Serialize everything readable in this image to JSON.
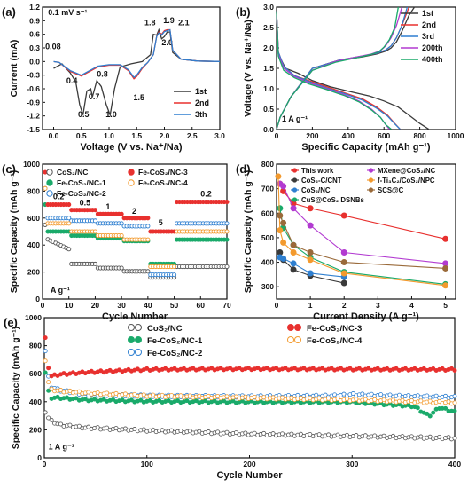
{
  "chart_data": [
    {
      "panel_label": "(a)",
      "type": "line",
      "xlabel": "Voltage (V vs. Na⁺/Na)",
      "ylabel": "Current (mA)",
      "xlim": [
        -0.2,
        3.0
      ],
      "ylim": [
        -1.5,
        1.2
      ],
      "xticks": [
        0.0,
        0.5,
        1.0,
        1.5,
        2.0,
        2.5,
        3.0
      ],
      "yticks": [
        -1.5,
        -1.2,
        -0.9,
        -0.6,
        -0.3,
        0.0,
        0.3,
        0.6,
        0.9,
        1.2
      ],
      "annotations": [
        {
          "text": "0.1 mV s⁻¹",
          "x": -0.1,
          "y": 1.02
        },
        {
          "text": "0.08",
          "x": -0.15,
          "y": 0.27
        },
        {
          "text": "0.4",
          "x": 0.23,
          "y": -0.48
        },
        {
          "text": "0.5",
          "x": 0.44,
          "y": -1.23
        },
        {
          "text": "0.7",
          "x": 0.63,
          "y": -0.83
        },
        {
          "text": "0.8",
          "x": 0.78,
          "y": -0.34
        },
        {
          "text": "1.0",
          "x": 0.94,
          "y": -1.23
        },
        {
          "text": "1.5",
          "x": 1.44,
          "y": -0.85
        },
        {
          "text": "1.8",
          "x": 1.64,
          "y": 0.8
        },
        {
          "text": "1.9",
          "x": 1.98,
          "y": 0.85
        },
        {
          "text": "2.1",
          "x": 2.25,
          "y": 0.8
        },
        {
          "text": "2.0",
          "x": 1.95,
          "y": 0.36
        }
      ],
      "series": [
        {
          "name": "1st",
          "color": "#3a3a3a",
          "x": [
            0.0,
            0.15,
            0.3,
            0.4,
            0.47,
            0.53,
            0.6,
            0.67,
            0.7,
            0.78,
            0.86,
            0.95,
            1.02,
            1.1,
            1.2,
            1.4,
            1.6,
            1.75,
            1.8,
            1.86,
            1.9,
            1.95,
            2.0,
            2.05,
            2.1,
            2.15,
            2.3,
            2.6,
            3.0
          ],
          "y": [
            -0.15,
            -0.05,
            -0.25,
            -0.45,
            -0.95,
            -1.18,
            -0.65,
            -0.6,
            -0.78,
            -0.42,
            -0.55,
            -0.95,
            -1.18,
            -0.6,
            -0.12,
            -0.05,
            0.0,
            0.15,
            0.6,
            0.58,
            0.7,
            0.5,
            0.55,
            0.65,
            0.65,
            0.2,
            0.05,
            0.01,
            0.0
          ]
        },
        {
          "name": "2nd",
          "color": "#e8312f",
          "x": [
            0.0,
            0.1,
            0.3,
            0.5,
            0.8,
            1.0,
            1.2,
            1.35,
            1.45,
            1.5,
            1.6,
            1.7,
            1.8,
            1.86,
            1.9,
            1.95,
            2.0,
            2.05,
            2.1,
            2.15,
            2.3,
            2.6,
            3.0
          ],
          "y": [
            0.0,
            -0.02,
            -0.22,
            -0.32,
            -0.12,
            -0.08,
            -0.08,
            -0.2,
            -0.38,
            -0.33,
            -0.15,
            -0.02,
            0.15,
            0.55,
            0.65,
            0.6,
            0.68,
            0.7,
            0.7,
            0.25,
            0.05,
            0.01,
            0.0
          ]
        },
        {
          "name": "3th",
          "color": "#2e7fd0",
          "x": [
            0.0,
            0.1,
            0.3,
            0.5,
            0.8,
            1.0,
            1.2,
            1.35,
            1.45,
            1.5,
            1.6,
            1.7,
            1.8,
            1.86,
            1.9,
            1.95,
            2.0,
            2.05,
            2.1,
            2.15,
            2.3,
            2.6,
            3.0
          ],
          "y": [
            0.0,
            -0.02,
            -0.2,
            -0.3,
            -0.1,
            -0.07,
            -0.07,
            -0.18,
            -0.35,
            -0.3,
            -0.13,
            -0.02,
            0.15,
            0.55,
            0.63,
            0.58,
            0.66,
            0.68,
            0.7,
            0.25,
            0.05,
            0.01,
            0.0
          ]
        }
      ],
      "legend": "bottom-right"
    },
    {
      "panel_label": "(b)",
      "type": "line",
      "xlabel": "Specific Capacity (mAh g⁻¹)",
      "ylabel": "Voltage (V vs. Na⁺/Na)",
      "xlim": [
        0,
        1000
      ],
      "ylim": [
        0.0,
        3.0
      ],
      "xticks": [
        0,
        200,
        400,
        600,
        800,
        1000
      ],
      "yticks": [
        0.0,
        0.5,
        1.0,
        1.5,
        2.0,
        2.5,
        3.0
      ],
      "annotations": [
        {
          "text": "1 A g⁻¹",
          "x": 30,
          "y": 0.2
        }
      ],
      "series": [
        {
          "name": "1st",
          "color": "#3a3a3a",
          "x": [
            0,
            10,
            50,
            120,
            200,
            300,
            420,
            520,
            600,
            680,
            740,
            800,
            850
          ],
          "y": [
            2.9,
            1.85,
            1.5,
            1.38,
            1.2,
            1.05,
            0.92,
            0.82,
            0.7,
            0.55,
            0.35,
            0.15,
            0.01
          ]
        },
        {
          "name": "1st",
          "color": "#3a3a3a",
          "x": [
            0,
            20,
            80,
            200,
            350,
            480,
            560,
            610,
            640,
            670,
            700,
            740,
            770
          ],
          "y": [
            0.01,
            0.3,
            0.8,
            1.5,
            1.7,
            1.78,
            1.85,
            1.92,
            2.0,
            2.15,
            2.4,
            2.8,
            3.0
          ]
        },
        {
          "name": "2nd",
          "color": "#e8312f",
          "x": [
            0,
            10,
            40,
            100,
            180,
            280,
            380,
            480,
            560,
            620,
            660,
            690
          ],
          "y": [
            2.9,
            1.9,
            1.55,
            1.32,
            1.2,
            1.05,
            0.9,
            0.75,
            0.55,
            0.35,
            0.15,
            0.01
          ]
        },
        {
          "name": "2nd",
          "color": "#e8312f",
          "x": [
            0,
            20,
            80,
            200,
            350,
            480,
            560,
            610,
            640,
            670,
            700,
            740
          ],
          "y": [
            0.01,
            0.3,
            0.8,
            1.5,
            1.7,
            1.8,
            1.87,
            1.95,
            2.05,
            2.25,
            2.55,
            3.0
          ]
        },
        {
          "name": "3rd",
          "color": "#2e7fd0",
          "x": [
            0,
            10,
            40,
            100,
            180,
            280,
            380,
            480,
            560,
            620,
            660,
            690
          ],
          "y": [
            2.9,
            1.9,
            1.55,
            1.32,
            1.18,
            1.02,
            0.88,
            0.72,
            0.52,
            0.33,
            0.14,
            0.01
          ]
        },
        {
          "name": "3rd",
          "color": "#2e7fd0",
          "x": [
            0,
            20,
            80,
            200,
            350,
            480,
            560,
            610,
            640,
            670,
            700,
            730
          ],
          "y": [
            0.01,
            0.3,
            0.8,
            1.5,
            1.7,
            1.8,
            1.87,
            1.95,
            2.05,
            2.25,
            2.55,
            3.0
          ]
        },
        {
          "name": "200th",
          "color": "#b23ad1",
          "x": [
            0,
            10,
            40,
            100,
            180,
            280,
            380,
            460,
            530,
            580,
            610,
            630
          ],
          "y": [
            2.9,
            1.85,
            1.5,
            1.3,
            1.15,
            1.0,
            0.85,
            0.7,
            0.5,
            0.3,
            0.12,
            0.01
          ]
        },
        {
          "name": "200th",
          "color": "#b23ad1",
          "x": [
            0,
            20,
            80,
            200,
            330,
            450,
            530,
            580,
            610,
            640,
            670,
            700
          ],
          "y": [
            0.01,
            0.3,
            0.8,
            1.45,
            1.67,
            1.78,
            1.85,
            1.93,
            2.05,
            2.25,
            2.55,
            3.0
          ]
        },
        {
          "name": "400th",
          "color": "#1aaa6a",
          "x": [
            0,
            10,
            40,
            100,
            180,
            280,
            380,
            460,
            530,
            580,
            610,
            640
          ],
          "y": [
            2.9,
            1.8,
            1.45,
            1.27,
            1.12,
            0.98,
            0.83,
            0.68,
            0.48,
            0.3,
            0.12,
            0.01
          ]
        },
        {
          "name": "400th",
          "color": "#1aaa6a",
          "x": [
            0,
            20,
            80,
            200,
            330,
            450,
            520,
            570,
            600,
            630,
            660,
            680
          ],
          "y": [
            0.01,
            0.3,
            0.8,
            1.45,
            1.65,
            1.76,
            1.83,
            1.9,
            2.02,
            2.2,
            2.5,
            3.0
          ]
        }
      ],
      "legend": "top-right",
      "legend_entries": [
        "1st",
        "2nd",
        "3rd",
        "200th",
        "400th"
      ]
    },
    {
      "panel_label": "(c)",
      "type": "scatter",
      "xlabel": "Cycle Number",
      "ylabel": "Specific Capacity (mAh g⁻¹)",
      "xlim": [
        0,
        70
      ],
      "ylim": [
        0,
        1000
      ],
      "xticks": [
        0,
        10,
        20,
        30,
        40,
        50,
        60,
        70
      ],
      "yticks": [
        0,
        200,
        400,
        600,
        800,
        1000
      ],
      "annotations": [
        {
          "text": "0.2",
          "x": 4,
          "y": 740
        },
        {
          "text": "0.5",
          "x": 14,
          "y": 695
        },
        {
          "text": "1",
          "x": 24,
          "y": 665
        },
        {
          "text": "2",
          "x": 34,
          "y": 630
        },
        {
          "text": "5",
          "x": 44,
          "y": 545
        },
        {
          "text": "0.2",
          "x": 60,
          "y": 760
        },
        {
          "text": "A g⁻¹",
          "x": 3,
          "y": 45
        }
      ],
      "series": [
        {
          "name": "CoS₂/NC",
          "color": "#555555",
          "levels": [
            370,
            260,
            230,
            205,
            160,
            240
          ],
          "decay_first": 1
        },
        {
          "name": "Fe-CoS₂/NC-1",
          "color": "#1aaa6a",
          "levels": [
            500,
            470,
            450,
            430,
            260,
            440
          ]
        },
        {
          "name": "Fe-CoS₂/NC-2",
          "color": "#2e7fd0",
          "levels": [
            600,
            580,
            560,
            540,
            180,
            560
          ]
        },
        {
          "name": "Fe-CoS₂/NC-3",
          "color": "#e8312f",
          "levels": [
            700,
            660,
            630,
            600,
            500,
            720
          ]
        },
        {
          "name": "Fe-CoS₂/NC-4",
          "color": "#f39a2e",
          "levels": [
            560,
            500,
            470,
            440,
            240,
            500
          ]
        }
      ],
      "legend": "top"
    },
    {
      "panel_label": "(d)",
      "type": "line",
      "xlabel": "Current Density (A g⁻¹)",
      "ylabel": "Specific Capacity (mAh g⁻¹)",
      "xlim": [
        0,
        5.3
      ],
      "ylim": [
        250,
        800
      ],
      "xticks": [
        0,
        1,
        2,
        3,
        4,
        5
      ],
      "yticks": [
        300,
        400,
        500,
        600,
        700,
        800
      ],
      "series": [
        {
          "name": "This work",
          "color": "#e8312f",
          "marker": "star",
          "x": [
            0.1,
            0.2,
            0.5,
            1,
            2,
            5
          ],
          "y": [
            720,
            690,
            640,
            620,
            590,
            495
          ]
        },
        {
          "name": "CoS₂-C/CNT",
          "color": "#3a3a3a",
          "marker": "circle",
          "x": [
            0.1,
            0.2,
            0.5,
            1,
            2
          ],
          "y": [
            440,
            410,
            370,
            345,
            315
          ]
        },
        {
          "name": "CoS₂/NC",
          "color": "#2e7fd0",
          "marker": "square",
          "x": [
            0.1,
            0.2,
            0.5,
            1,
            2
          ],
          "y": [
            420,
            415,
            395,
            355,
            340
          ]
        },
        {
          "name": "CuS@CoS₂ DSNBs",
          "color": "#1aaa6a",
          "marker": "triangle-down",
          "x": [
            0.1,
            0.2,
            0.5,
            1,
            2,
            5
          ],
          "y": [
            620,
            540,
            470,
            420,
            360,
            310
          ]
        },
        {
          "name": "MXene@CoS₂/NC",
          "color": "#b23ad1",
          "marker": "diamond",
          "x": [
            0.1,
            0.2,
            0.5,
            1,
            2,
            5
          ],
          "y": [
            720,
            710,
            620,
            550,
            440,
            395
          ]
        },
        {
          "name": "f-Ti₃C₂/CoS₂/NPC",
          "color": "#f39a2e",
          "marker": "hexagon",
          "x": [
            0.05,
            0.1,
            0.2,
            0.5,
            1,
            2,
            5
          ],
          "y": [
            750,
            530,
            480,
            440,
            410,
            355,
            305
          ]
        },
        {
          "name": "SCS@C",
          "color": "#9a6a3a",
          "marker": "x",
          "x": [
            0.1,
            0.2,
            0.5,
            1,
            2,
            5
          ],
          "y": [
            590,
            560,
            470,
            440,
            400,
            375
          ]
        }
      ],
      "legend": "top-right"
    },
    {
      "panel_label": "(e)",
      "type": "scatter",
      "xlabel": "Cycle Number",
      "ylabel": "Specific Capacity (mAh g⁻¹)",
      "xlim": [
        0,
        400
      ],
      "ylim": [
        0,
        1000
      ],
      "xticks": [
        0,
        100,
        200,
        300,
        400
      ],
      "yticks": [
        0,
        200,
        400,
        600,
        800,
        1000
      ],
      "annotations": [
        {
          "text": "1 A g⁻¹",
          "x": 4,
          "y": 60
        }
      ],
      "series": [
        {
          "name": "CoS₂/NC",
          "color": "#555555",
          "first": 330,
          "x": [
            1,
            5,
            15,
            40,
            100,
            200,
            300,
            400
          ],
          "y": [
            330,
            270,
            235,
            215,
            195,
            170,
            155,
            140
          ]
        },
        {
          "name": "Fe-CoS₂/NC-1",
          "color": "#1aaa6a",
          "first": 610,
          "x": [
            1,
            5,
            15,
            40,
            100,
            200,
            300,
            360,
            375,
            385,
            400
          ],
          "y": [
            610,
            430,
            430,
            415,
            405,
            400,
            400,
            370,
            300,
            360,
            330
          ]
        },
        {
          "name": "Fe-CoS₂/NC-2",
          "color": "#2e7fd0",
          "first": 760,
          "x": [
            1,
            5,
            15,
            40,
            100,
            200,
            280,
            300,
            340,
            400
          ],
          "y": [
            760,
            510,
            480,
            450,
            440,
            435,
            440,
            450,
            440,
            430
          ]
        },
        {
          "name": "Fe-CoS₂/NC-3",
          "color": "#e8312f",
          "first": 850,
          "x": [
            1,
            5,
            15,
            40,
            100,
            200,
            300,
            400
          ],
          "y": [
            850,
            580,
            595,
            610,
            630,
            635,
            632,
            630
          ]
        },
        {
          "name": "Fe-CoS₂/NC-4",
          "color": "#f39a2e",
          "first": 700,
          "x": [
            1,
            5,
            15,
            40,
            100,
            200,
            300,
            400
          ],
          "y": [
            700,
            490,
            480,
            465,
            445,
            430,
            415,
            395
          ]
        }
      ],
      "legend": "top"
    }
  ]
}
